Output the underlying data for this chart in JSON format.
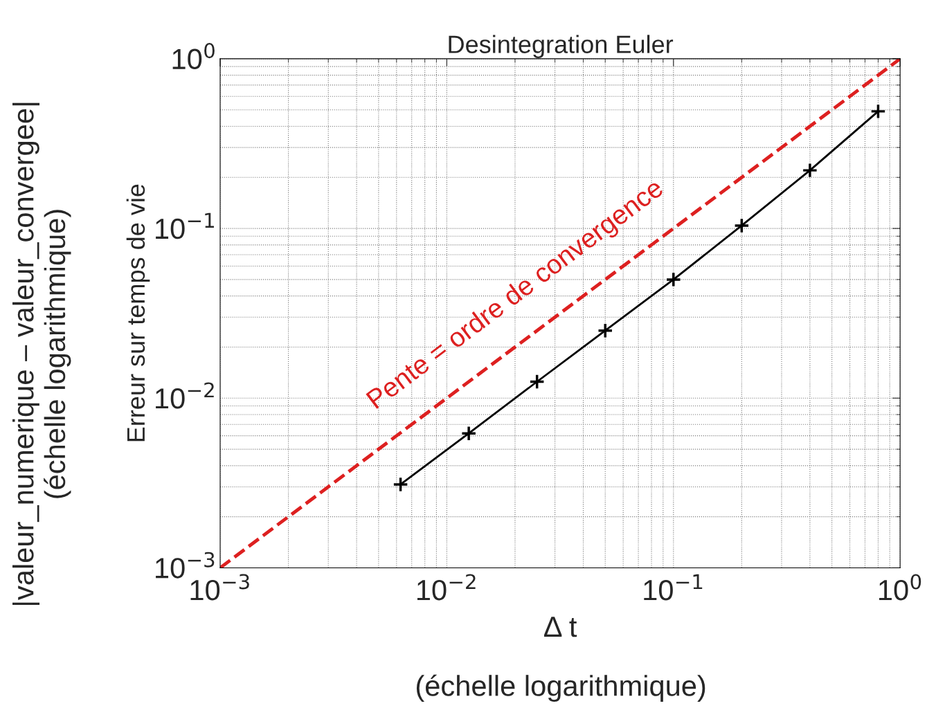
{
  "chart_data": {
    "type": "line",
    "title": "Desintegration Euler",
    "xlabel": "Δ t",
    "ylabel": "Erreur sur temps de vie",
    "log": "xy",
    "grid": true,
    "xlim": [
      0.001,
      1
    ],
    "ylim": [
      0.001,
      1
    ],
    "xticks": [
      {
        "value": 0.001,
        "label": "10$^{−3}$"
      },
      {
        "value": 0.01,
        "label": "10$^{−2}$"
      },
      {
        "value": 0.1,
        "label": "10$^{−1}$"
      },
      {
        "value": 1,
        "label": "10$^{0}$"
      }
    ],
    "yticks": [
      {
        "value": 0.001,
        "label": "10$^{−3}$"
      },
      {
        "value": 0.01,
        "label": "10$^{−2}$"
      },
      {
        "value": 0.1,
        "label": "10$^{−1}$"
      },
      {
        "value": 1,
        "label": "10$^{0}$"
      }
    ],
    "series": [
      {
        "color": "#dd2020",
        "line_style": "dashed",
        "marker": "none",
        "x": [
          0.001,
          1
        ],
        "values": [
          0.001,
          1
        ]
      },
      {
        "color": "#000000",
        "line_style": "solid",
        "marker": "cross",
        "x": [
          0.00625,
          0.0125,
          0.025,
          0.05,
          0.1,
          0.2,
          0.4,
          0.8
        ],
        "values": [
          0.0031,
          0.0062,
          0.0125,
          0.025,
          0.05,
          0.104,
          0.22,
          0.49
        ]
      }
    ],
    "annotations": [
      "Pente = ordre de convergence",
      "|valeur_numerique – valeur_convergee|\n(échelle logarithmique)",
      "(échelle logarithmique)"
    ]
  }
}
